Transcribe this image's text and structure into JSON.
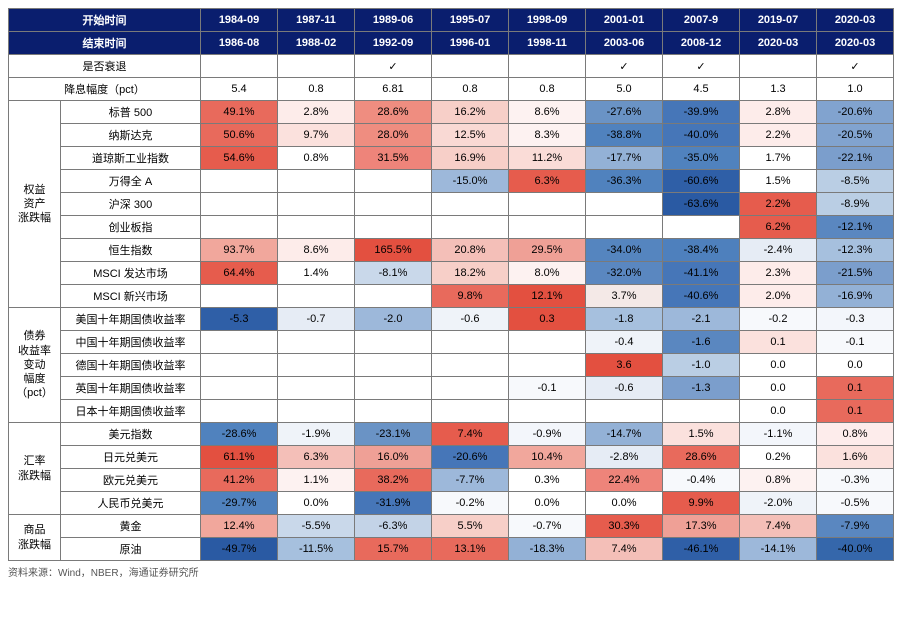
{
  "source_note": "资料来源：Wind，NBER，海通证券研究所",
  "header": {
    "start_time_label": "开始时间",
    "end_time_label": "结束时间",
    "periods": [
      {
        "start": "1984-09",
        "end": "1986-08"
      },
      {
        "start": "1987-11",
        "end": "1988-02"
      },
      {
        "start": "1989-06",
        "end": "1992-09"
      },
      {
        "start": "1995-07",
        "end": "1996-01"
      },
      {
        "start": "1998-09",
        "end": "1998-11"
      },
      {
        "start": "2001-01",
        "end": "2003-06"
      },
      {
        "start": "2007-9",
        "end": "2008-12"
      },
      {
        "start": "2019-07",
        "end": "2020-03"
      },
      {
        "start": "2020-03",
        "end": "2020-03"
      }
    ]
  },
  "top_rows": [
    {
      "label": "是否衰退",
      "values": [
        "",
        "",
        "✓",
        "",
        "",
        "✓",
        "✓",
        "",
        "✓"
      ],
      "bg": [
        "",
        "",
        "",
        "",
        "",
        "",
        "",
        "",
        ""
      ]
    },
    {
      "label": "降息幅度（pct）",
      "values": [
        "5.4",
        "0.8",
        "6.81",
        "0.8",
        "0.8",
        "5.0",
        "4.5",
        "1.3",
        "1.0"
      ],
      "bg": [
        "",
        "",
        "",
        "",
        "",
        "",
        "",
        "",
        ""
      ]
    }
  ],
  "groups": [
    {
      "name": "权益\n资产\n涨跌幅",
      "rows": [
        {
          "label": "标普 500",
          "values": [
            "49.1%",
            "2.8%",
            "28.6%",
            "16.2%",
            "8.6%",
            "-27.6%",
            "-39.9%",
            "2.8%",
            "-20.6%"
          ],
          "bg": [
            "#e86a5c",
            "#fdecea",
            "#ef8d80",
            "#f7cfc8",
            "#fdf2f1",
            "#6a93c5",
            "#4676b8",
            "#fdecea",
            "#81a3cf"
          ]
        },
        {
          "label": "纳斯达克",
          "values": [
            "50.6%",
            "9.7%",
            "28.0%",
            "12.5%",
            "8.3%",
            "-38.8%",
            "-40.0%",
            "2.2%",
            "-20.5%"
          ],
          "bg": [
            "#e86a5c",
            "#fbe1dd",
            "#ef8d80",
            "#f9d9d4",
            "#fdf2f1",
            "#5082be",
            "#4676b8",
            "#fdecea",
            "#81a3cf"
          ]
        },
        {
          "label": "道琼斯工业指数",
          "values": [
            "54.6%",
            "0.8%",
            "31.5%",
            "16.9%",
            "11.2%",
            "-17.7%",
            "-35.0%",
            "1.7%",
            "-22.1%"
          ],
          "bg": [
            "#e65c4d",
            "#ffffff",
            "#ee847a",
            "#f7cfc8",
            "#fadcd7",
            "#93b1d6",
            "#5082be",
            "#ffffff",
            "#7b9ecc"
          ]
        },
        {
          "label": "万得全 A",
          "values": [
            "",
            "",
            "",
            "-15.0%",
            "6.3%",
            "-36.3%",
            "-60.6%",
            "1.5%",
            "-8.5%"
          ],
          "bg": [
            "",
            "",
            "",
            "#9db8da",
            "#e65c4d",
            "#5082be",
            "#2f5fa7",
            "#ffffff",
            "#bacee4"
          ]
        },
        {
          "label": "沪深 300",
          "values": [
            "",
            "",
            "",
            "",
            "",
            "",
            "-63.6%",
            "2.2%",
            "-8.9%"
          ],
          "bg": [
            "",
            "",
            "",
            "",
            "",
            "",
            "#2a5aa3",
            "#e65c4d",
            "#bacee4"
          ]
        },
        {
          "label": "创业板指",
          "values": [
            "",
            "",
            "",
            "",
            "",
            "",
            "",
            "6.2%",
            "-12.1%"
          ],
          "bg": [
            "",
            "",
            "",
            "",
            "",
            "",
            "",
            "#e65c4d",
            "#5a87c0"
          ]
        },
        {
          "label": "恒生指数",
          "values": [
            "93.7%",
            "8.6%",
            "165.5%",
            "20.8%",
            "29.5%",
            "-34.0%",
            "-38.4%",
            "-2.4%",
            "-12.3%"
          ],
          "bg": [
            "#f1a79c",
            "#fdecea",
            "#e35040",
            "#f4bfb8",
            "#efa096",
            "#5585bf",
            "#4e80bd",
            "#e6ecf5",
            "#a6c0de"
          ]
        },
        {
          "label": "MSCI 发达市场",
          "values": [
            "64.4%",
            "1.4%",
            "-8.1%",
            "18.2%",
            "8.0%",
            "-32.0%",
            "-41.1%",
            "2.3%",
            "-21.5%"
          ],
          "bg": [
            "#e65c4d",
            "#ffffff",
            "#c9d8ea",
            "#f7cfc8",
            "#fdf2f1",
            "#5a87c0",
            "#4676b8",
            "#fdecea",
            "#7b9ecc"
          ]
        },
        {
          "label": "MSCI 新兴市场",
          "values": [
            "",
            "",
            "",
            "9.8%",
            "12.1%",
            "3.7%",
            "-40.6%",
            "2.0%",
            "-16.9%"
          ],
          "bg": [
            "",
            "",
            "",
            "#e86a5c",
            "#e35040",
            "#f4e9e7",
            "#4676b8",
            "#fdecea",
            "#93b1d6"
          ]
        }
      ]
    },
    {
      "name": "债券\n收益率\n变动\n幅度\n（pct）",
      "rows": [
        {
          "label": "美国十年期国债收益率",
          "values": [
            "-5.3",
            "-0.7",
            "-2.0",
            "-0.6",
            "0.3",
            "-1.8",
            "-2.1",
            "-0.2",
            "-0.3"
          ],
          "bg": [
            "#2f5fa7",
            "#e6ecf5",
            "#9db8da",
            "#eff3f9",
            "#e35040",
            "#a6c0de",
            "#9db8da",
            "#f7f9fc",
            "#f3f6fb"
          ]
        },
        {
          "label": "中国十年期国债收益率",
          "values": [
            "",
            "",
            "",
            "",
            "",
            "-0.4",
            "-1.6",
            "0.1",
            "-0.1"
          ],
          "bg": [
            "",
            "",
            "",
            "",
            "",
            "#eff3f9",
            "#5a87c0",
            "#fbe1dd",
            "#f7f9fc"
          ]
        },
        {
          "label": "德国十年期国债收益率",
          "values": [
            "",
            "",
            "",
            "",
            "",
            "3.6",
            "-1.0",
            "0.0",
            "0.0"
          ],
          "bg": [
            "",
            "",
            "",
            "",
            "",
            "#e35040",
            "#bacee4",
            "#ffffff",
            "#ffffff"
          ]
        },
        {
          "label": "英国十年期国债收益率",
          "values": [
            "",
            "",
            "",
            "",
            "-0.1",
            "-0.6",
            "-1.3",
            "0.0",
            "0.1"
          ],
          "bg": [
            "",
            "",
            "",
            "",
            "#f7f9fc",
            "#e6ecf5",
            "#7b9ecc",
            "#ffffff",
            "#e86a5c"
          ]
        },
        {
          "label": "日本十年期国债收益率",
          "values": [
            "",
            "",
            "",
            "",
            "",
            "",
            "",
            "0.0",
            "0.1"
          ],
          "bg": [
            "",
            "",
            "",
            "",
            "",
            "",
            "",
            "#ffffff",
            "#e86a5c"
          ]
        }
      ]
    },
    {
      "name": "汇率\n涨跌幅",
      "rows": [
        {
          "label": "美元指数",
          "values": [
            "-28.6%",
            "-1.9%",
            "-23.1%",
            "7.4%",
            "-0.9%",
            "-14.7%",
            "1.5%",
            "-1.1%",
            "0.8%"
          ],
          "bg": [
            "#5082be",
            "#eff3f9",
            "#6a93c5",
            "#e65c4d",
            "#f3f6fb",
            "#93b1d6",
            "#fbe1dd",
            "#f3f6fb",
            "#fdeceb"
          ]
        },
        {
          "label": "日元兑美元",
          "values": [
            "61.1%",
            "6.3%",
            "16.0%",
            "-20.6%",
            "10.4%",
            "-2.8%",
            "28.6%",
            "0.2%",
            "1.6%"
          ],
          "bg": [
            "#e35040",
            "#f4bfb8",
            "#efa096",
            "#4676b8",
            "#f1a79c",
            "#e6ecf5",
            "#e86a5c",
            "#ffffff",
            "#fbe1dd"
          ]
        },
        {
          "label": "欧元兑美元",
          "values": [
            "41.2%",
            "1.1%",
            "38.2%",
            "-7.7%",
            "0.3%",
            "22.4%",
            "-0.4%",
            "0.8%",
            "-0.3%"
          ],
          "bg": [
            "#e86a5c",
            "#fdf2f1",
            "#e86a5c",
            "#9db8da",
            "#ffffff",
            "#ee847a",
            "#f7f9fc",
            "#fdf2f1",
            "#f7f9fc"
          ]
        },
        {
          "label": "人民币兑美元",
          "values": [
            "-29.7%",
            "0.0%",
            "-31.9%",
            "-0.2%",
            "0.0%",
            "0.0%",
            "9.9%",
            "-2.0%",
            "-0.5%"
          ],
          "bg": [
            "#5082be",
            "#ffffff",
            "#4676b8",
            "#f7f9fc",
            "#ffffff",
            "#ffffff",
            "#e65c4d",
            "#eff3f9",
            "#f7f9fc"
          ]
        }
      ]
    },
    {
      "name": "商品\n涨跌幅",
      "rows": [
        {
          "label": "黄金",
          "values": [
            "12.4%",
            "-5.5%",
            "-6.3%",
            "5.5%",
            "-0.7%",
            "30.3%",
            "17.3%",
            "7.4%",
            "-7.9%"
          ],
          "bg": [
            "#f1a79c",
            "#c9d8ea",
            "#c3d3e7",
            "#f7cfc8",
            "#f7f9fc",
            "#e65c4d",
            "#efa096",
            "#f4bfb8",
            "#5a87c0"
          ]
        },
        {
          "label": "原油",
          "values": [
            "-49.7%",
            "-11.5%",
            "15.7%",
            "13.1%",
            "-18.3%",
            "7.4%",
            "-46.1%",
            "-14.1%",
            "-40.0%"
          ],
          "bg": [
            "#2a5aa3",
            "#a6c0de",
            "#e86a5c",
            "#e86a5c",
            "#93b1d6",
            "#f4bfb8",
            "#2f5fa7",
            "#9db8da",
            "#3567ab"
          ]
        }
      ]
    }
  ]
}
